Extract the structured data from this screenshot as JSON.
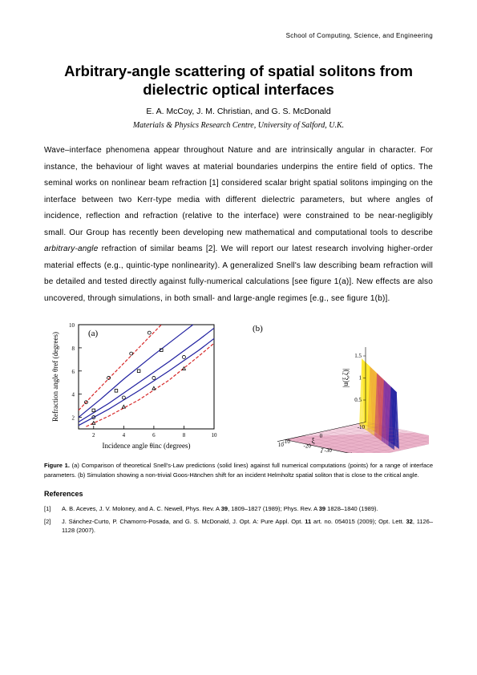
{
  "header": "School of Computing, Science, and Engineering",
  "title": "Arbitrary-angle scattering of spatial solitons from dielectric optical interfaces",
  "authors": "E. A. McCoy, J. M. Christian, and G. S. McDonald",
  "affiliation": "Materials & Physics Research Centre, University of Salford, U.K.",
  "abstract_parts": {
    "p1": "Wave–interface phenomena appear throughout Nature and are intrinsically angular in character.  For instance, the behaviour of light waves at material boundaries underpins the entire field of optics.  The seminal works on nonlinear beam refraction [1] considered scalar bright spatial solitons impinging on the interface between two Kerr-type media with different dielectric parameters, but where angles of incidence, reflection and refraction (relative to the interface) were constrained to be near-negligibly small.  Our Group has recently been developing new mathematical and computational tools to describe ",
    "italic1": "arbitrary-angle",
    "p2": " refraction of similar beams [2].  We will report our latest research involving higher-order material effects (e.g., quintic-type nonlinearity).  A generalized Snell's law describing beam refraction will be detailed and tested directly against fully-numerical calculations [see figure 1(a)].  New effects are also uncovered, through simulations, in both small- and large-angle regimes [e.g., see figure 1(b)]."
  },
  "figure_a": {
    "type": "line",
    "label": "(a)",
    "xlabel": "Incidence angle θinc (degrees)",
    "ylabel": "Refraction angle θref (degrees)",
    "xlim": [
      1,
      10
    ],
    "ylim": [
      1,
      10
    ],
    "xticks": [
      2,
      4,
      6,
      8,
      10
    ],
    "yticks": [
      2,
      4,
      6,
      8,
      10
    ],
    "background": "#ffffff",
    "border_color": "#000000",
    "series": [
      {
        "color": "#d62728",
        "dash": "4,2",
        "points": [
          [
            1.5,
            1.2
          ],
          [
            3,
            2.1
          ],
          [
            5,
            3.5
          ],
          [
            7,
            5.2
          ],
          [
            9,
            7.3
          ],
          [
            10,
            8.4
          ]
        ]
      },
      {
        "color": "#2020a0",
        "dash": "none",
        "points": [
          [
            1,
            1.3
          ],
          [
            3,
            2.7
          ],
          [
            5,
            4.3
          ],
          [
            7,
            6.0
          ],
          [
            9,
            7.8
          ],
          [
            10,
            8.8
          ]
        ]
      },
      {
        "color": "#2020a0",
        "dash": "none",
        "points": [
          [
            1,
            1.6
          ],
          [
            3,
            3.2
          ],
          [
            5,
            5.0
          ],
          [
            7,
            6.8
          ],
          [
            9,
            8.7
          ],
          [
            10,
            9.7
          ]
        ]
      },
      {
        "color": "#2020a0",
        "dash": "none",
        "points": [
          [
            1,
            2.0
          ],
          [
            2.5,
            3.6
          ],
          [
            4,
            5.3
          ],
          [
            6,
            7.4
          ],
          [
            8,
            9.4
          ],
          [
            8.6,
            10
          ]
        ]
      },
      {
        "color": "#d62728",
        "dash": "4,2",
        "points": [
          [
            1,
            2.6
          ],
          [
            2,
            4.0
          ],
          [
            3.5,
            6.0
          ],
          [
            5,
            8.0
          ],
          [
            6.5,
            10
          ]
        ]
      }
    ],
    "markers": [
      {
        "color": "#000000",
        "shape": "triangle",
        "points": [
          [
            2,
            1.5
          ],
          [
            4,
            2.9
          ],
          [
            6,
            4.5
          ],
          [
            8,
            6.2
          ]
        ]
      },
      {
        "color": "#000000",
        "shape": "circle",
        "points": [
          [
            2,
            2.0
          ],
          [
            4,
            3.7
          ],
          [
            6,
            5.4
          ],
          [
            8,
            7.2
          ]
        ]
      },
      {
        "color": "#000000",
        "shape": "square",
        "points": [
          [
            2,
            2.6
          ],
          [
            3.5,
            4.3
          ],
          [
            5,
            6.0
          ],
          [
            6.5,
            7.8
          ]
        ]
      },
      {
        "color": "#000000",
        "shape": "circle",
        "points": [
          [
            1.5,
            3.3
          ],
          [
            3,
            5.4
          ],
          [
            4.5,
            7.5
          ],
          [
            5.7,
            9.3
          ]
        ]
      }
    ],
    "axis_fontsize": 9,
    "tick_fontsize": 7
  },
  "figure_b": {
    "type": "surface",
    "label": "(b)",
    "zlabel": "|u(ξ,ζ)|",
    "xlabel": "ξ",
    "ylabel": "ζ",
    "xticks": [
      -10,
      0,
      10
    ],
    "yticks": [
      -50,
      -40,
      -30,
      -20,
      -10
    ],
    "zticks": [
      0.5,
      1,
      1.5
    ],
    "surface_base_color": "#e8a5c0",
    "ridge_colors": [
      "#fde725",
      "#f0b030",
      "#cc5060",
      "#8030a0",
      "#2020a0"
    ],
    "background": "#ffffff"
  },
  "caption": {
    "lead": "Figure 1.",
    "text": " (a) Comparison of theoretical Snell's-Law predictions (solid lines) against full numerical computations (points) for a range of interface parameters.  (b) Simulation showing a non-trivial Goos-Hänchen shift for an incident Helmholtz spatial soliton that is close to the critical angle."
  },
  "refs_title": "References",
  "references": [
    {
      "num": "[1]",
      "text": "A. B. Aceves, J. V. Moloney, and A. C. Newell, Phys. Rev. A ",
      "b1": "39",
      "text2": ", 1809–1827 (1989); Phys. Rev. A ",
      "b2": "39",
      "text3": " 1828–1840 (1989)."
    },
    {
      "num": "[2]",
      "text": "J. Sánchez-Curto, P. Chamorro-Posada, and G. S. McDonald, J. Opt. A: Pure Appl. Opt. ",
      "b1": "11",
      "text2": " art. no. 054015 (2009); Opt. Lett. ",
      "b2": "32",
      "text3": ", 1126–1128 (2007)."
    }
  ]
}
